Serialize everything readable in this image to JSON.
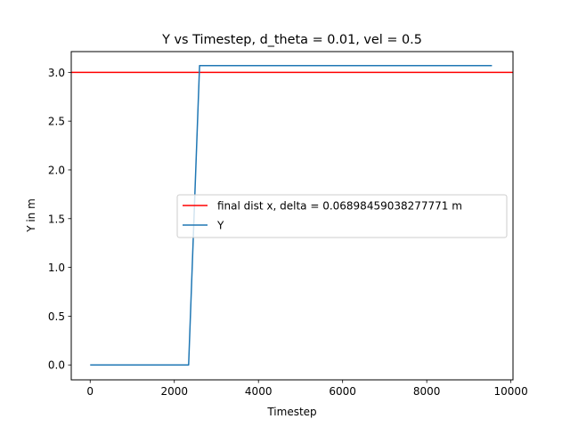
{
  "chart_data": {
    "type": "line",
    "title": "Y vs Timestep, d_theta = 0.01, vel = 0.5",
    "xlabel": "Timestep",
    "ylabel": "Y in m",
    "xlim": [
      -450,
      10050
    ],
    "ylim": [
      -0.153,
      3.213
    ],
    "xticks": [
      0,
      2000,
      4000,
      6000,
      8000,
      10000
    ],
    "xtick_labels": [
      "0",
      "2000",
      "4000",
      "6000",
      "8000",
      "10000"
    ],
    "yticks": [
      0.0,
      0.5,
      1.0,
      1.5,
      2.0,
      2.5,
      3.0
    ],
    "ytick_labels": [
      "0.0",
      "0.5",
      "1.0",
      "1.5",
      "2.0",
      "2.5",
      "3.0"
    ],
    "grid": false,
    "legend_position": "center-right",
    "hlines": [
      {
        "name": "final dist x, delta = 0.06898459038277771 m",
        "y": 3.0,
        "color": "#ff0000"
      }
    ],
    "series": [
      {
        "name": "Y",
        "color": "#1f77b4",
        "x": [
          0,
          2340,
          2600,
          9550
        ],
        "y": [
          0.0,
          0.0,
          3.069,
          3.069
        ]
      }
    ]
  }
}
